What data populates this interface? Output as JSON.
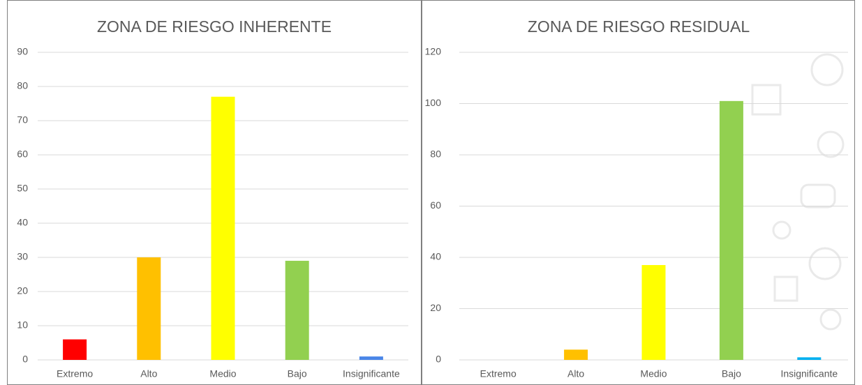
{
  "chart_data": [
    {
      "type": "bar",
      "title": "ZONA DE RIESGO INHERENTE",
      "categories": [
        "Extremo",
        "Alto",
        "Medio",
        "Bajo",
        "Insignificante"
      ],
      "values": [
        6,
        30,
        77,
        29,
        1
      ],
      "colors": [
        "#ff0000",
        "#ffc000",
        "#ffff00",
        "#92d050",
        "#4a86e8"
      ],
      "ylim": [
        0,
        90
      ],
      "yticks": [
        0,
        10,
        20,
        30,
        40,
        50,
        60,
        70,
        80,
        90
      ],
      "grid": true
    },
    {
      "type": "bar",
      "title": "ZONA DE RIESGO RESIDUAL",
      "categories": [
        "Extremo",
        "Alto",
        "Medio",
        "Bajo",
        "Insignificante"
      ],
      "values": [
        0,
        4,
        37,
        101,
        1
      ],
      "colors": [
        "#ff0000",
        "#ffc000",
        "#ffff00",
        "#92d050",
        "#00b0f0"
      ],
      "ylim": [
        0,
        120
      ],
      "yticks": [
        0,
        20,
        40,
        60,
        80,
        100,
        120
      ],
      "grid": true
    }
  ]
}
